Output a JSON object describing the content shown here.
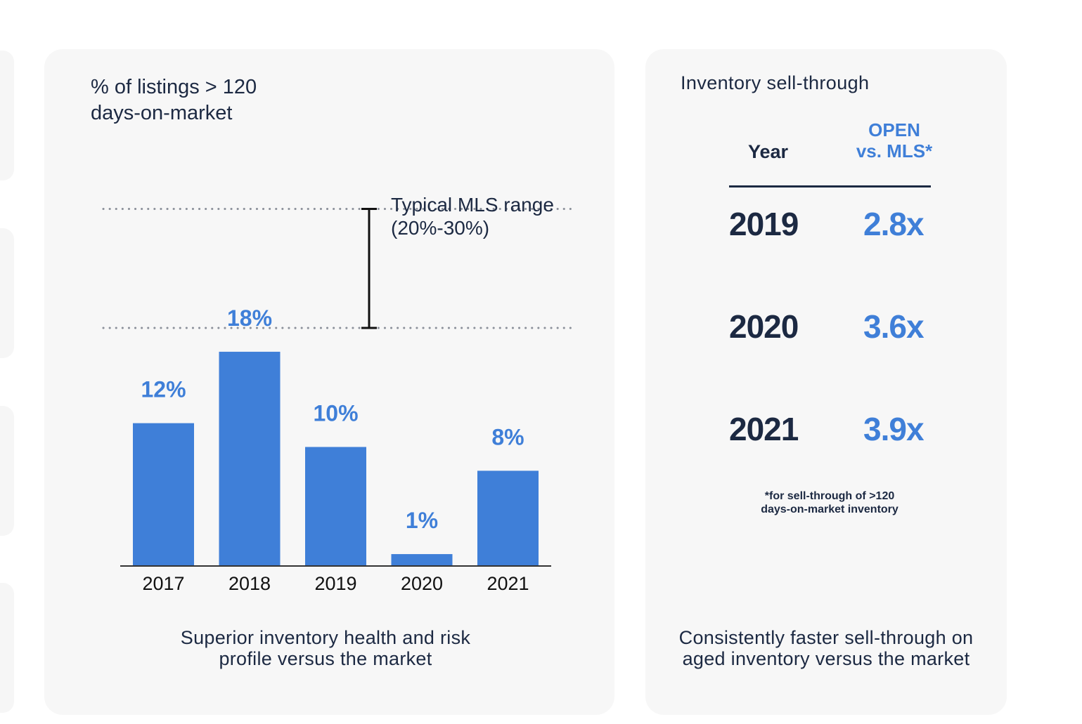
{
  "colors": {
    "bar": "#3f7fd8",
    "text_dark": "#1c2942",
    "card_bg": "#f7f7f7",
    "dotted_line": "#8a8f99"
  },
  "chart_data": {
    "type": "bar",
    "title_lines": [
      "% of listings > 120",
      "days-on-market"
    ],
    "categories": [
      "2017",
      "2018",
      "2019",
      "2020",
      "2021"
    ],
    "values": [
      12,
      18,
      10,
      1,
      8
    ],
    "value_labels": [
      "12%",
      "18%",
      "10%",
      "1%",
      "8%"
    ],
    "ylim": [
      0,
      30
    ],
    "reference_band": {
      "low": 20,
      "high": 30,
      "label_lines": [
        "Typical MLS range",
        "(20%-30%)"
      ]
    },
    "xlabel": "",
    "ylabel": "",
    "caption_lines": [
      "Superior inventory health and risk",
      "profile versus the market"
    ]
  },
  "table": {
    "title": "Inventory sell-through",
    "header_year": "Year",
    "header_value_lines": [
      "OPEN",
      "vs. MLS*"
    ],
    "rows": [
      {
        "year": "2019",
        "value": "2.8x"
      },
      {
        "year": "2020",
        "value": "3.6x"
      },
      {
        "year": "2021",
        "value": "3.9x"
      }
    ],
    "footnote_lines": [
      "*for sell-through of >120",
      "days-on-market inventory"
    ],
    "caption_lines": [
      "Consistently faster sell-through on",
      "aged inventory versus the market"
    ]
  }
}
